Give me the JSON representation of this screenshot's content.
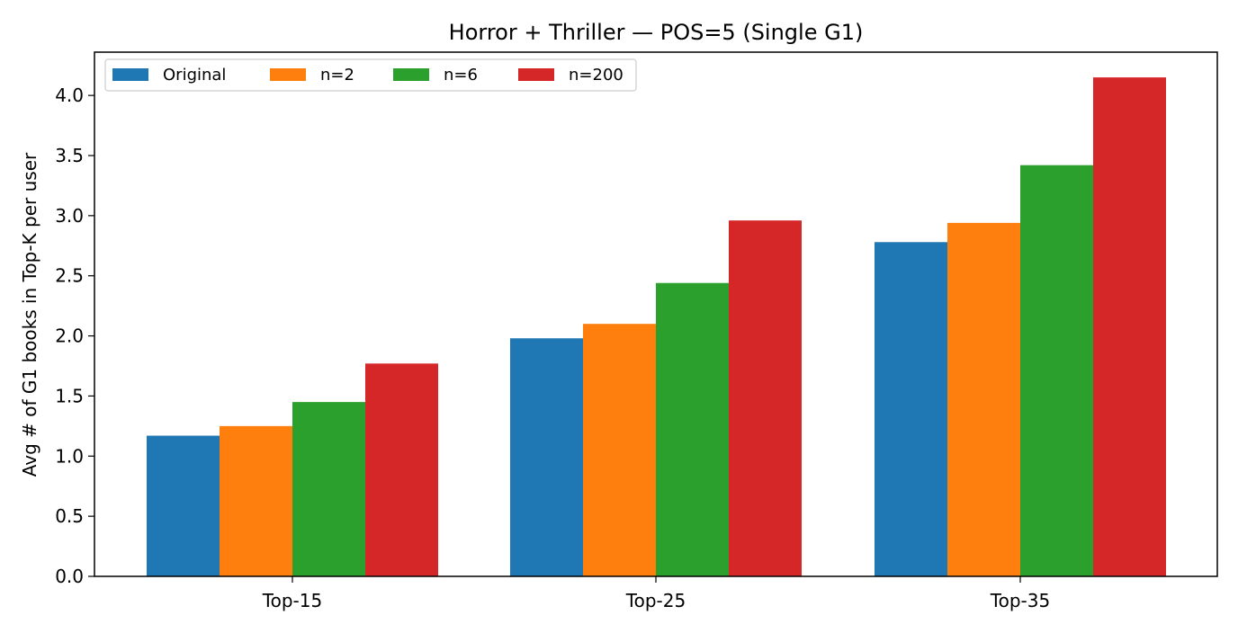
{
  "chart_data": {
    "type": "bar",
    "title": "Horror + Thriller — POS=5 (Single G1)",
    "xlabel": "",
    "ylabel": "Avg # of G1 books in Top-K per user",
    "categories": [
      "Top-15",
      "Top-25",
      "Top-35"
    ],
    "series": [
      {
        "name": "Original",
        "color": "#1f77b4",
        "values": [
          1.17,
          1.98,
          2.78
        ]
      },
      {
        "name": "n=2",
        "color": "#ff7f0e",
        "values": [
          1.25,
          2.1,
          2.94
        ]
      },
      {
        "name": "n=6",
        "color": "#2ca02c",
        "values": [
          1.45,
          2.44,
          3.42
        ]
      },
      {
        "name": "n=200",
        "color": "#d62728",
        "values": [
          1.77,
          2.96,
          4.15
        ]
      }
    ],
    "ylim": [
      0,
      4.36
    ],
    "yticks": [
      "0.0",
      "0.5",
      "1.0",
      "1.5",
      "2.0",
      "2.5",
      "3.0",
      "3.5",
      "4.0"
    ],
    "grid": false,
    "legend": "top-left"
  }
}
